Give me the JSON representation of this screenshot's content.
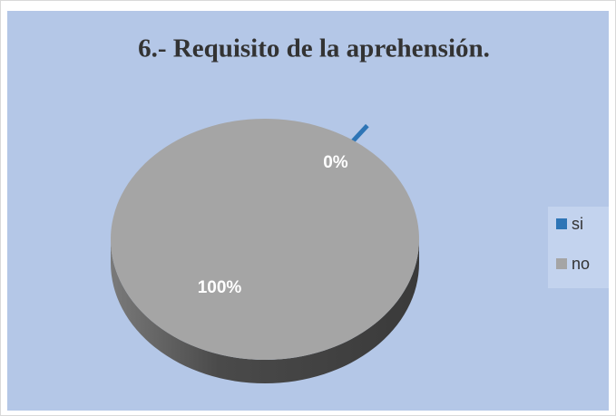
{
  "chart_data": {
    "type": "pie",
    "title": "6.- Requisito de la aprehensión.",
    "categories": [
      "si",
      "no"
    ],
    "values": [
      0,
      100
    ],
    "value_labels": [
      "0%",
      "100%"
    ],
    "colors": [
      "#2e75b6",
      "#a5a5a5"
    ],
    "legend": "right"
  }
}
